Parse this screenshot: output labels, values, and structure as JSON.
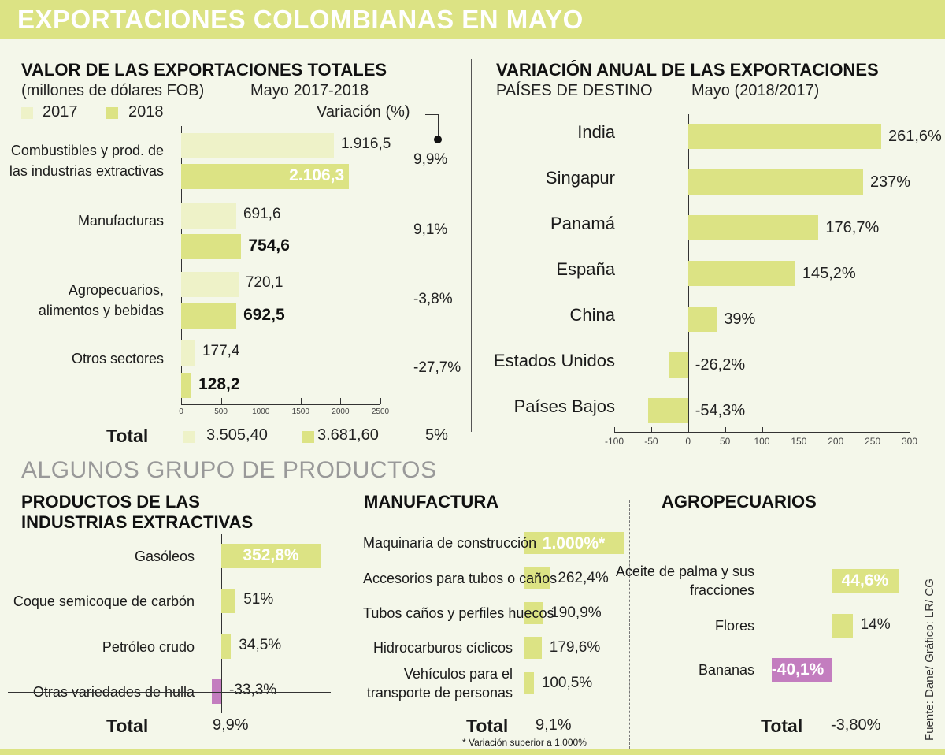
{
  "header": {
    "title": "EXPORTACIONES COLOMBIANAS EN MAYO"
  },
  "colors": {
    "bar": "#dce384",
    "bar_light": "#eef2c8",
    "negative": "#c37dbf",
    "band": "#dce384"
  },
  "section_title": "ALGUNOS GRUPO DE PRODUCTOS",
  "source": "Fuente: Dane/ Gráfico: LR/ CG",
  "chart_data": [
    {
      "type": "bar",
      "title": "VALOR DE LAS EXPORTACIONES TOTALES",
      "subtitle": "(millones de dólares FOB)",
      "period": "Mayo 2017-2018",
      "legend": [
        "2017",
        "2018"
      ],
      "variation_label": "Variación (%)",
      "categories": [
        "Combustibles y prod. de las industrias extractivas",
        "Manufacturas",
        "Agropecuarios, alimentos y bebidas",
        "Otros sectores"
      ],
      "series": [
        {
          "name": "2017",
          "values": [
            1916.5,
            691.6,
            720.1,
            177.4
          ],
          "labels": [
            "1.916,5",
            "691,6",
            "720,1",
            "177,4"
          ]
        },
        {
          "name": "2018",
          "values": [
            2106.3,
            754.6,
            692.5,
            128.2
          ],
          "labels": [
            "2.106,3",
            "754,6",
            "692,5",
            "128,2"
          ]
        }
      ],
      "variation": [
        "9,9%",
        "9,1%",
        "-3,8%",
        "-27,7%"
      ],
      "xlim": [
        0,
        2500
      ],
      "xticks": [
        "0",
        "500",
        "1000",
        "1500",
        "2000",
        "2500"
      ],
      "total": {
        "label": "Total",
        "v2017": "3.505,40",
        "v2018": "3.681,60",
        "variation": "5%"
      }
    },
    {
      "type": "bar",
      "title": "VARIACIÓN ANUAL DE LAS EXPORTACIONES",
      "subtitle": "PAÍSES DE DESTINO",
      "period": "Mayo (2018/2017)",
      "categories": [
        "India",
        "Singapur",
        "Panamá",
        "España",
        "China",
        "Estados Unidos",
        "Países Bajos"
      ],
      "values": [
        261.6,
        237,
        176.7,
        145.2,
        39,
        -26.2,
        -54.3
      ],
      "labels": [
        "261,6%",
        "237%",
        "176,7%",
        "145,2%",
        "39%",
        "-26,2%",
        "-54,3%"
      ],
      "xlim": [
        -100,
        300
      ],
      "xticks": [
        "-100",
        "-50",
        "0",
        "50",
        "100",
        "150",
        "200",
        "250",
        "300"
      ]
    },
    {
      "type": "bar",
      "title": "PRODUCTOS DE LAS INDUSTRIAS EXTRACTIVAS",
      "categories": [
        "Gasóleos",
        "Coque semicoque de carbón",
        "Petróleo crudo",
        "Otras variedades de hulla"
      ],
      "values": [
        352.8,
        51,
        34.5,
        -33.3
      ],
      "labels": [
        "352,8%",
        "51%",
        "34,5%",
        "-33,3%"
      ],
      "total": {
        "label": "Total",
        "value": "9,9%"
      }
    },
    {
      "type": "bar",
      "title": "MANUFACTURA",
      "categories": [
        "Maquinaria de construcción",
        "Accesorios para tubos o caños",
        "Tubos caños y perfiles huecos",
        "Hidrocarburos cíclicos",
        "Vehículos para el transporte de personas"
      ],
      "values": [
        1000,
        262.4,
        190.9,
        179.6,
        100.5
      ],
      "labels": [
        "1.000%*",
        "262,4%",
        "190,9%",
        "179,6%",
        "100,5%"
      ],
      "total": {
        "label": "Total",
        "value": "9,1%"
      },
      "note": "* Variación superior a 1.000%"
    },
    {
      "type": "bar",
      "title": "AGROPECUARIOS",
      "categories": [
        "Aceite de palma y sus fracciones",
        "Flores",
        "Bananas"
      ],
      "values": [
        44.6,
        14,
        -40.1
      ],
      "labels": [
        "44,6%",
        "14%",
        "-40,1%"
      ],
      "total": {
        "label": "Total",
        "value": "-3,80%"
      }
    }
  ]
}
